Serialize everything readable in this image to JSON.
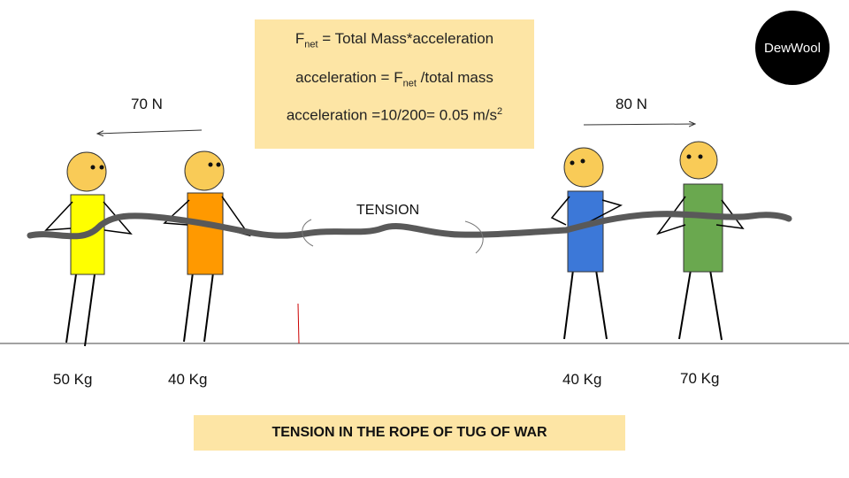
{
  "logo": {
    "text": "DewWool",
    "background": "#000000"
  },
  "formulas": {
    "line1": {
      "lhs": "F",
      "lhs_sub": "net",
      "rhs": "=  Total Mass*acceleration"
    },
    "line2": {
      "lhs": "acceleration = F",
      "lhs_sub": "net",
      "rhs": "/total mass"
    },
    "line3": {
      "text": "acceleration =10/200= 0.05 m/s",
      "sup": "2"
    },
    "box_color": "#fde5a5"
  },
  "forces": {
    "left": "70 N",
    "right": "80 N"
  },
  "rope_label": "TENSION",
  "people": [
    {
      "mass": "50 Kg",
      "shirt_color": "#ffff00"
    },
    {
      "mass": "40 Kg",
      "shirt_color": "#ff9900"
    },
    {
      "mass": "40 Kg",
      "shirt_color": "#3c78d8"
    },
    {
      "mass": "70 Kg",
      "shirt_color": "#6aa84f"
    }
  ],
  "caption": "TENSION IN THE ROPE OF TUG OF WAR",
  "colors": {
    "face": "#f9cb57",
    "rope": "#595959",
    "marker": "#cc0000"
  }
}
